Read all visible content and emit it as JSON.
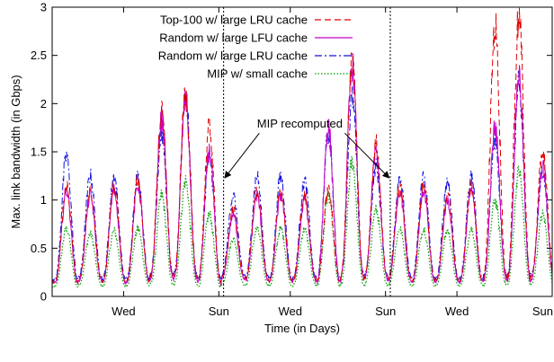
{
  "chart_data": {
    "type": "line",
    "title": "",
    "xlabel": "Time (in Days)",
    "ylabel": "Max. link bandwidth (in Gbps)",
    "xlim": [
      0,
      21
    ],
    "ylim": [
      0,
      3
    ],
    "x_ticks": [
      {
        "value": 3,
        "label": "Wed"
      },
      {
        "value": 7,
        "label": "Sun"
      },
      {
        "value": 10,
        "label": "Wed"
      },
      {
        "value": 14,
        "label": "Sun"
      },
      {
        "value": 17,
        "label": "Wed"
      },
      {
        "value": 21,
        "label": "Sun"
      }
    ],
    "y_ticks": [
      0,
      0.5,
      1,
      1.5,
      2,
      2.5,
      3
    ],
    "grid": false,
    "legend_position": "top-left",
    "day_x": [
      0.6,
      1.6,
      2.6,
      3.6,
      4.6,
      5.6,
      6.6,
      7.6,
      8.6,
      9.6,
      10.6,
      11.6,
      12.6,
      13.6,
      14.6,
      15.6,
      16.6,
      17.6,
      18.6,
      19.6,
      20.6
    ],
    "series": [
      {
        "name": "Top-100 w/ large LRU cache",
        "color": "#e00000",
        "style": "dashed",
        "peaks": [
          1.15,
          1.1,
          1.15,
          1.2,
          1.9,
          2.1,
          1.75,
          0.9,
          1.1,
          1.1,
          1.05,
          1.1,
          2.45,
          1.6,
          1.15,
          1.15,
          1.05,
          1.15,
          2.8,
          2.9,
          1.5
        ],
        "troughs": [
          0.15,
          0.18,
          0.15,
          0.16,
          0.2,
          0.2,
          0.15,
          0.2,
          0.18,
          0.16,
          0.18,
          0.16,
          0.2,
          0.2,
          0.18,
          0.16,
          0.16,
          0.16,
          0.2,
          0.2,
          0.2
        ]
      },
      {
        "name": "Random w/ large LFU cache",
        "color": "#c800c8",
        "style": "solid",
        "peaks": [
          1.1,
          1.05,
          1.1,
          1.15,
          1.85,
          2.05,
          1.5,
          0.85,
          1.05,
          1.05,
          1.0,
          1.75,
          2.4,
          1.5,
          1.1,
          1.1,
          1.0,
          1.1,
          1.75,
          2.3,
          1.35
        ],
        "troughs": [
          0.14,
          0.16,
          0.14,
          0.15,
          0.18,
          0.18,
          0.14,
          0.18,
          0.16,
          0.15,
          0.16,
          0.15,
          0.18,
          0.18,
          0.16,
          0.15,
          0.15,
          0.15,
          0.18,
          0.18,
          0.18
        ]
      },
      {
        "name": "Random w/ large LRU cache",
        "color": "#1010e0",
        "style": "dashdot",
        "peaks": [
          1.45,
          1.25,
          1.25,
          1.25,
          1.7,
          2.1,
          1.45,
          1.05,
          1.25,
          1.25,
          1.2,
          1.7,
          2.05,
          1.35,
          1.25,
          1.25,
          1.2,
          1.25,
          1.6,
          2.2,
          1.3
        ],
        "troughs": [
          0.18,
          0.2,
          0.18,
          0.18,
          0.22,
          0.22,
          0.18,
          0.22,
          0.2,
          0.18,
          0.2,
          0.18,
          0.22,
          0.22,
          0.2,
          0.18,
          0.18,
          0.18,
          0.22,
          0.22,
          0.22
        ]
      },
      {
        "name": "MIP w/ small cache",
        "color": "#00a000",
        "style": "dotted",
        "peaks": [
          0.7,
          0.65,
          0.68,
          0.7,
          1.05,
          1.2,
          0.85,
          0.6,
          0.7,
          0.7,
          0.7,
          1.05,
          1.4,
          0.9,
          0.7,
          0.7,
          0.68,
          0.7,
          1.0,
          1.3,
          0.85
        ],
        "troughs": [
          0.1,
          0.12,
          0.1,
          0.11,
          0.12,
          0.12,
          0.1,
          0.12,
          0.12,
          0.11,
          0.12,
          0.11,
          0.12,
          0.12,
          0.12,
          0.11,
          0.11,
          0.11,
          0.12,
          0.12,
          0.12
        ]
      }
    ],
    "vertical_markers": [
      7.2,
      14.2
    ],
    "annotation": {
      "text": "MIP recomputed",
      "x": 10.4,
      "y": 1.75,
      "arrow_targets": [
        [
          7.25,
          1.23
        ],
        [
          14.15,
          1.23
        ]
      ]
    }
  }
}
